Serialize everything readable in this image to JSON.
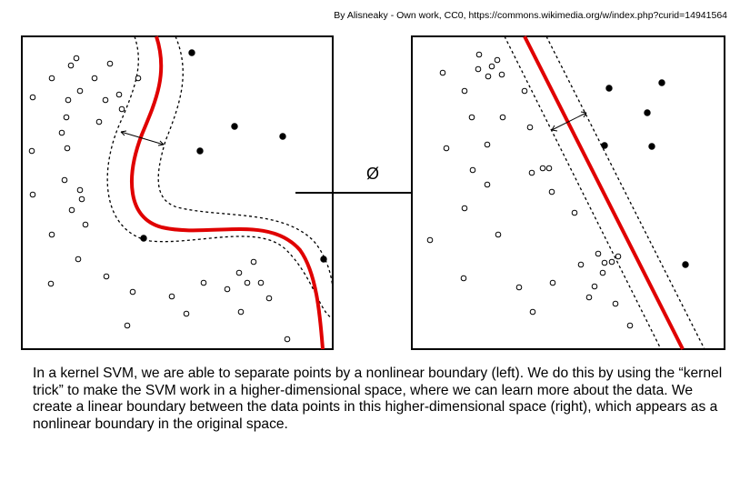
{
  "credit": "By Alisneaky - Own work, CC0, https://commons.wikimedia.org/w/index.php?curid=14941564",
  "map_label": "Ø",
  "caption": "In a kernel SVM, we are able to separate points by a nonlinear boundary (left). We do this by using the “kernel trick” to make the SVM work in a higher-dimensional space, where we can learn more about the data. We create a linear boundary between the data points in this higher-dimensional space (right), which appears as a nonlinear boundary in the original space.",
  "colors": {
    "boundary": "#e00000",
    "ink": "#000000"
  }
}
